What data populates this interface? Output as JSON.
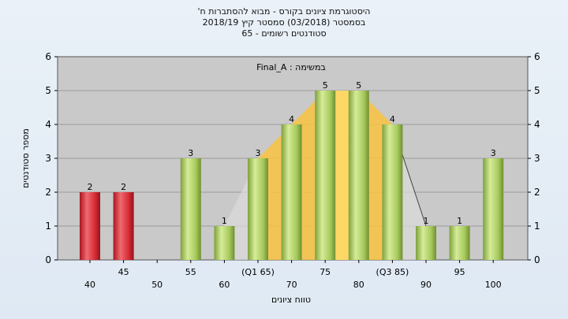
{
  "title_lines": [
    "'היסטוגרמת ציונים בקורס - מבוא להסתברות ח",
    "בסמסטר  (03/2018)  סמסטר קיץ  2018/19",
    "סטודנטים רשומים - 65"
  ],
  "chart_data": {
    "type": "bar",
    "legend_label": "Final_A : במשימה",
    "xlabel": "טווח ציונים",
    "ylabel": "מספר סטודנטים",
    "ylim": [
      0,
      6
    ],
    "y_ticks": [
      0,
      1,
      2,
      3,
      4,
      5,
      6
    ],
    "grid": true,
    "categories": [
      "40",
      "45",
      "50",
      "55",
      "60",
      "65",
      "70",
      "75",
      "80",
      "85",
      "90",
      "95",
      "100"
    ],
    "category_labels": [
      "40",
      "45",
      "50",
      "55",
      "60",
      "(Q1 65)",
      "70",
      "75",
      "80",
      "(Q3 85)",
      "90",
      "95",
      "100"
    ],
    "values": [
      2,
      2,
      0,
      3,
      1,
      3,
      4,
      5,
      5,
      4,
      1,
      1,
      3
    ],
    "bar_colors": [
      "red",
      "red",
      "green",
      "green",
      "green",
      "green",
      "green",
      "green",
      "green",
      "green",
      "green",
      "green",
      "green"
    ],
    "iqr_band": {
      "from": "65",
      "to": "85"
    },
    "median_band": {
      "from": "75",
      "to": "80"
    },
    "colors": {
      "red_bar": "#d42a33",
      "green_bar": "#9fc455",
      "plot_bg": "#c9c9c9",
      "iqr_fill": "#f9c342",
      "band_edge": "#b6b6b6"
    }
  }
}
